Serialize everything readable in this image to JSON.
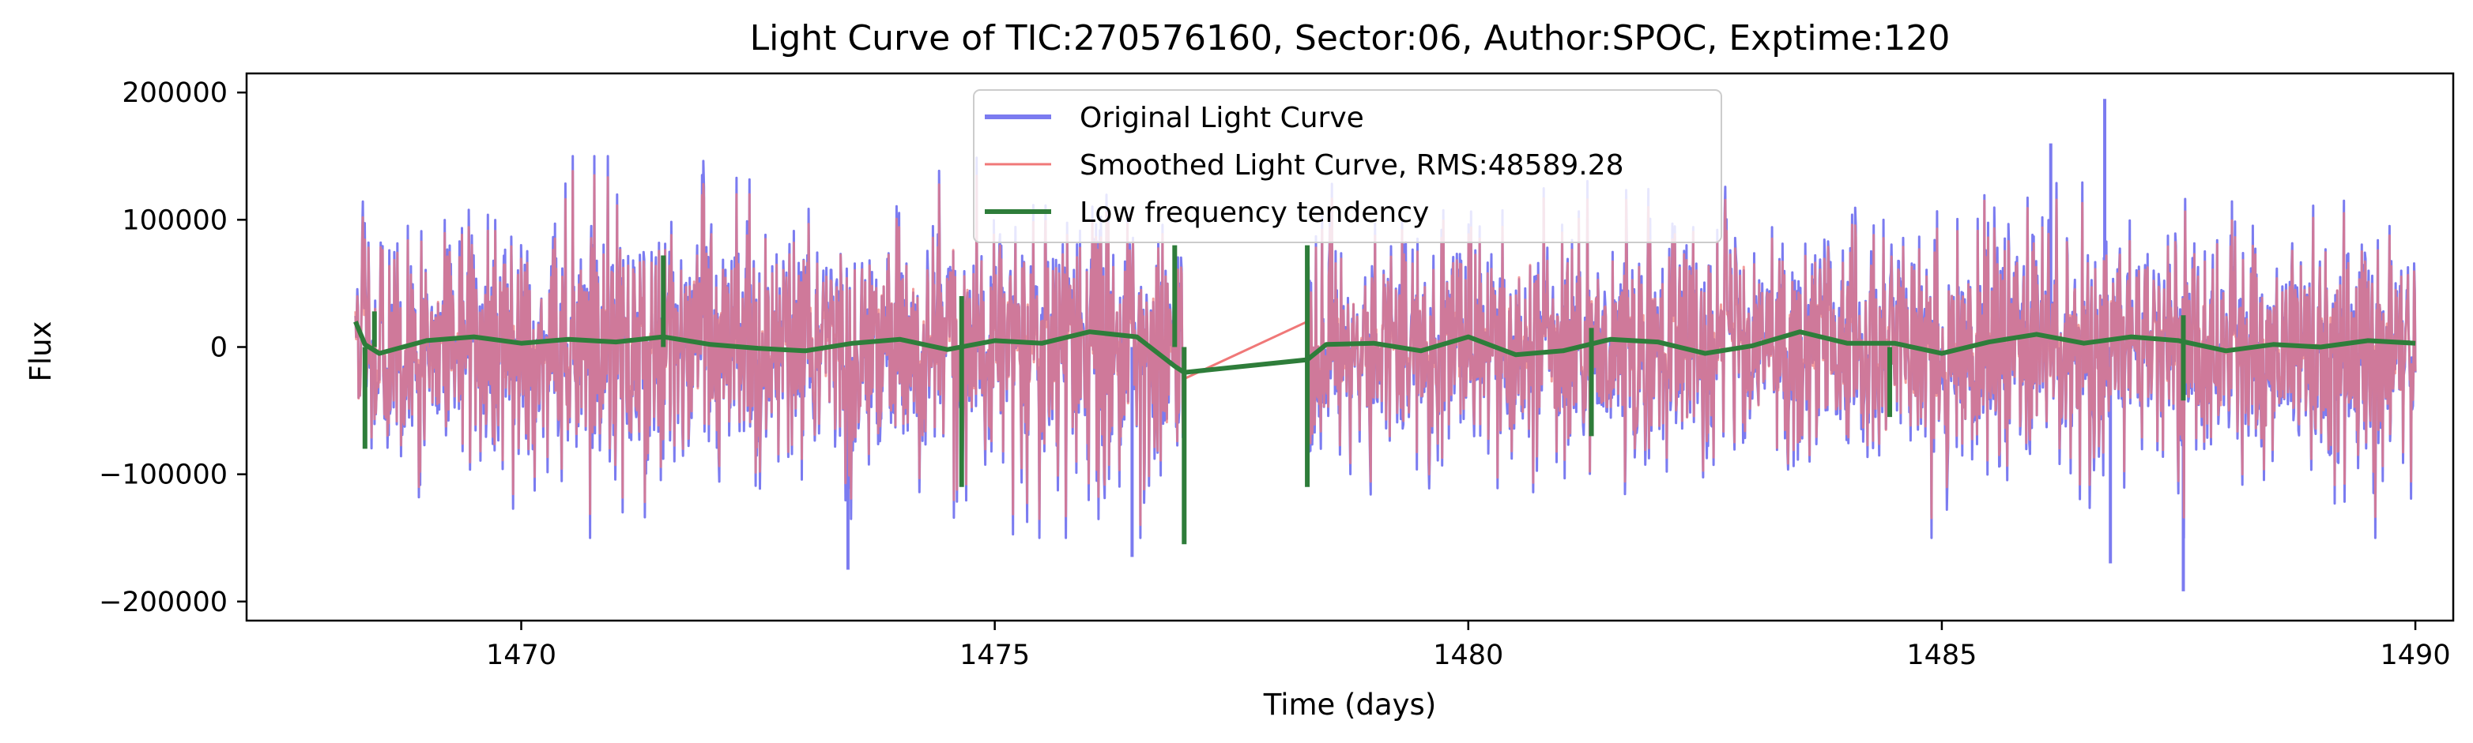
{
  "chart_data": {
    "type": "line",
    "title": "Light Curve of TIC:270576160, Sector:06, Author:SPOC, Exptime:120",
    "xlabel": "Time (days)",
    "ylabel": "Flux",
    "xlim": [
      1467.1,
      1490.4
    ],
    "ylim": [
      -215000,
      215000
    ],
    "x_ticks": [
      1470,
      1475,
      1480,
      1485,
      1490
    ],
    "x_tick_labels": [
      "1470",
      "1475",
      "1480",
      "1485",
      "1490"
    ],
    "y_ticks": [
      -200000,
      -100000,
      0,
      100000,
      200000
    ],
    "y_tick_labels": [
      "−200000",
      "−100000",
      "0",
      "100000",
      "200000"
    ],
    "grid": false,
    "legend_position": "top-center",
    "data_gap": [
      1477.0,
      1478.3
    ],
    "series": [
      {
        "name": "Original Light Curve",
        "color": "#7b7bf0",
        "x_range": [
          1468.25,
          1490.0
        ],
        "typical_envelope": [
          -100000,
          110000
        ],
        "extremes": [
          {
            "x": 1473.45,
            "y": -175000
          },
          {
            "x": 1476.45,
            "y": -165000
          },
          {
            "x": 1486.15,
            "y": 160000
          },
          {
            "x": 1486.72,
            "y": 195000
          },
          {
            "x": 1486.78,
            "y": -170000
          },
          {
            "x": 1487.55,
            "y": -192000
          }
        ]
      },
      {
        "name": "Smoothed Light Curve, RMS:48589.28",
        "color": "#f07878",
        "x_range": [
          1468.25,
          1490.0
        ],
        "typical_envelope": [
          -90000,
          100000
        ],
        "gap_bridge": [
          [
            1477.0,
            -25000
          ],
          [
            1478.3,
            20000
          ]
        ]
      },
      {
        "name": "Low frequency tendency",
        "color": "#2e7d3a",
        "x": [
          1468.25,
          1468.35,
          1468.5,
          1469.0,
          1469.5,
          1470.0,
          1470.5,
          1471.0,
          1471.5,
          1472.0,
          1472.5,
          1473.0,
          1473.5,
          1474.0,
          1474.5,
          1475.0,
          1475.5,
          1476.0,
          1476.5,
          1476.9,
          1477.0,
          1478.3,
          1478.5,
          1479.0,
          1479.5,
          1480.0,
          1480.5,
          1481.0,
          1481.5,
          1482.0,
          1482.5,
          1483.0,
          1483.5,
          1484.0,
          1484.5,
          1485.0,
          1485.5,
          1486.0,
          1486.5,
          1487.0,
          1487.5,
          1488.0,
          1488.5,
          1489.0,
          1489.5,
          1490.0
        ],
        "y": [
          20000,
          2000,
          -5000,
          5000,
          8000,
          3000,
          6000,
          4000,
          8000,
          2000,
          -1000,
          -3000,
          3000,
          6000,
          -2000,
          5000,
          3000,
          12000,
          8000,
          -15000,
          -20000,
          -10000,
          2000,
          3000,
          -3000,
          8000,
          -6000,
          -3000,
          6000,
          4000,
          -5000,
          1000,
          12000,
          3000,
          3000,
          -5000,
          4000,
          10000,
          3000,
          8000,
          5000,
          -3000,
          2000,
          0,
          5000,
          3000
        ],
        "spikes": [
          {
            "x": 1468.35,
            "y": -80000
          },
          {
            "x": 1468.45,
            "y": 28000
          },
          {
            "x": 1471.5,
            "y": 72000
          },
          {
            "x": 1474.65,
            "y": 40000
          },
          {
            "x": 1474.65,
            "y": -110000
          },
          {
            "x": 1476.9,
            "y": 80000
          },
          {
            "x": 1477.0,
            "y": -155000
          },
          {
            "x": 1478.3,
            "y": 80000
          },
          {
            "x": 1478.3,
            "y": -110000
          },
          {
            "x": 1481.3,
            "y": 15000
          },
          {
            "x": 1481.3,
            "y": -70000
          },
          {
            "x": 1484.45,
            "y": -55000
          },
          {
            "x": 1487.55,
            "y": 25000
          },
          {
            "x": 1487.55,
            "y": -42000
          }
        ]
      }
    ]
  }
}
